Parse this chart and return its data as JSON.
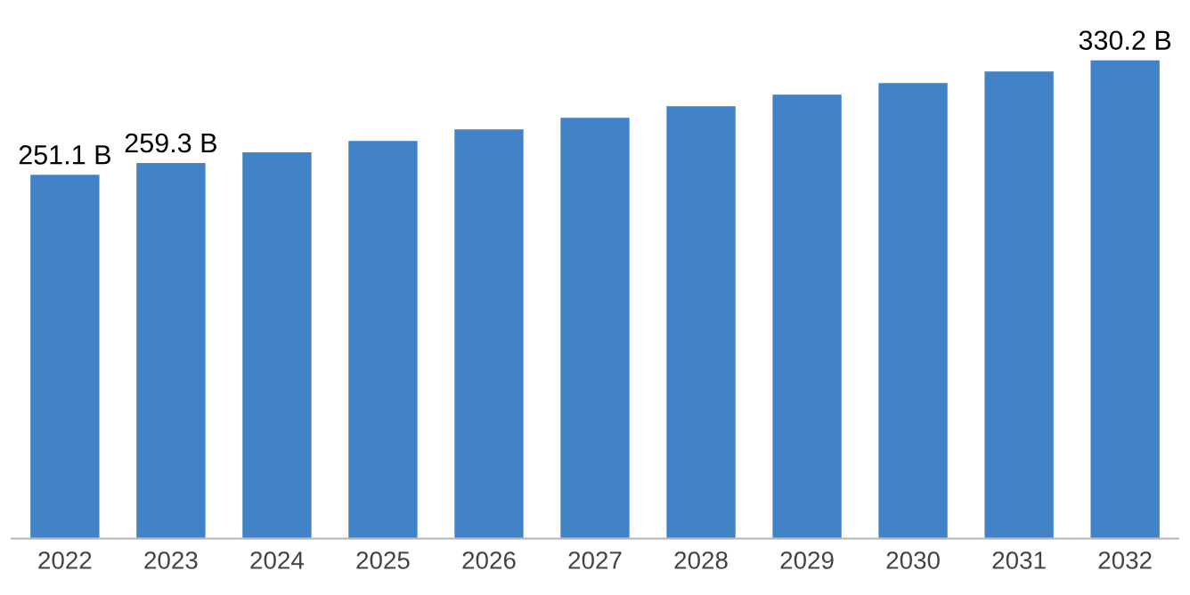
{
  "chart_data": {
    "type": "bar",
    "categories": [
      "2022",
      "2023",
      "2024",
      "2025",
      "2026",
      "2027",
      "2028",
      "2029",
      "2030",
      "2031",
      "2032"
    ],
    "values": [
      251.1,
      259.3,
      266.6,
      274.5,
      282.5,
      290.5,
      298.5,
      306.5,
      314.5,
      322.5,
      330.2
    ],
    "value_labels": [
      "251.1 B",
      "259.3 B",
      null,
      null,
      null,
      null,
      null,
      null,
      null,
      null,
      "330.2 B"
    ],
    "color": "#4282c6",
    "grid": false,
    "legend": false
  }
}
